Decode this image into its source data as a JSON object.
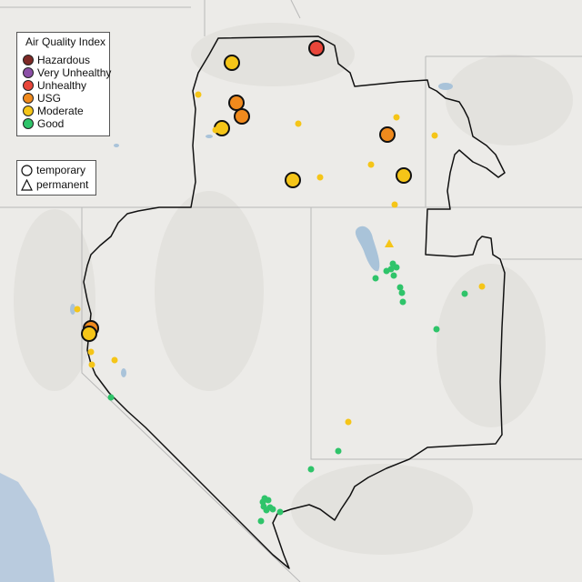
{
  "legend": {
    "title": "Air Quality Index",
    "categories": [
      {
        "label": "Hazardous",
        "color": "#7e2a26"
      },
      {
        "label": "Very Unhealthy",
        "color": "#8b4fa6"
      },
      {
        "label": "Unhealthy",
        "color": "#e8463a"
      },
      {
        "label": "USG",
        "color": "#f08a1d"
      },
      {
        "label": "Moderate",
        "color": "#f5c518"
      },
      {
        "label": "Good",
        "color": "#2fc46a"
      }
    ]
  },
  "monitor_types": [
    {
      "label": "temporary",
      "shape": "circle"
    },
    {
      "label": "permanent",
      "shape": "triangle"
    }
  ],
  "colors": {
    "land": "#ecebe8",
    "ocean": "#b9cbde",
    "lakes": "#a9c3d9",
    "state_lines": "#b8b8b8",
    "region_outline": "#111111"
  },
  "monitors": [
    {
      "category": "Unhealthy",
      "type": "temporary",
      "size": "large"
    },
    {
      "category": "USG",
      "type": "temporary",
      "size": "large"
    },
    {
      "category": "USG",
      "type": "temporary",
      "size": "large"
    },
    {
      "category": "USG",
      "type": "temporary",
      "size": "large"
    },
    {
      "category": "USG",
      "type": "temporary",
      "size": "large"
    },
    {
      "category": "Moderate",
      "type": "temporary",
      "size": "large"
    },
    {
      "category": "Moderate",
      "type": "temporary",
      "size": "large"
    },
    {
      "category": "Moderate",
      "type": "temporary",
      "size": "large"
    },
    {
      "category": "Moderate",
      "type": "temporary",
      "size": "large"
    },
    {
      "category": "Moderate",
      "type": "temporary",
      "size": "large"
    },
    {
      "category": "Moderate",
      "type": "temporary",
      "size": "small"
    },
    {
      "category": "Moderate",
      "type": "temporary",
      "size": "small"
    },
    {
      "category": "Moderate",
      "type": "temporary",
      "size": "small"
    },
    {
      "category": "Moderate",
      "type": "temporary",
      "size": "small"
    },
    {
      "category": "Moderate",
      "type": "temporary",
      "size": "small"
    },
    {
      "category": "Moderate",
      "type": "temporary",
      "size": "small"
    },
    {
      "category": "Moderate",
      "type": "temporary",
      "size": "small"
    },
    {
      "category": "Moderate",
      "type": "temporary",
      "size": "small"
    },
    {
      "category": "Moderate",
      "type": "temporary",
      "size": "small"
    },
    {
      "category": "Moderate",
      "type": "temporary",
      "size": "small"
    },
    {
      "category": "Moderate",
      "type": "temporary",
      "size": "small"
    },
    {
      "category": "Moderate",
      "type": "temporary",
      "size": "small"
    },
    {
      "category": "Moderate",
      "type": "temporary",
      "size": "small"
    },
    {
      "category": "Moderate",
      "type": "temporary",
      "size": "small"
    },
    {
      "category": "Moderate",
      "type": "permanent",
      "size": "small"
    },
    {
      "category": "Good",
      "type": "temporary",
      "size": "small"
    },
    {
      "category": "Good",
      "type": "temporary",
      "size": "small"
    },
    {
      "category": "Good",
      "type": "temporary",
      "size": "small"
    },
    {
      "category": "Good",
      "type": "temporary",
      "size": "small"
    },
    {
      "category": "Good",
      "type": "temporary",
      "size": "small"
    },
    {
      "category": "Good",
      "type": "temporary",
      "size": "small"
    },
    {
      "category": "Good",
      "type": "temporary",
      "size": "small"
    },
    {
      "category": "Good",
      "type": "temporary",
      "size": "small"
    },
    {
      "category": "Good",
      "type": "temporary",
      "size": "small"
    },
    {
      "category": "Good",
      "type": "temporary",
      "size": "small"
    },
    {
      "category": "Good",
      "type": "temporary",
      "size": "small"
    },
    {
      "category": "Good",
      "type": "temporary",
      "size": "small"
    },
    {
      "category": "Good",
      "type": "temporary",
      "size": "small"
    },
    {
      "category": "Good",
      "type": "temporary",
      "size": "small"
    },
    {
      "category": "Good",
      "type": "temporary",
      "size": "small"
    },
    {
      "category": "Good",
      "type": "temporary",
      "size": "small"
    },
    {
      "category": "Good",
      "type": "temporary",
      "size": "small"
    },
    {
      "category": "Good",
      "type": "temporary",
      "size": "small"
    },
    {
      "category": "Good",
      "type": "temporary",
      "size": "small"
    },
    {
      "category": "Good",
      "type": "temporary",
      "size": "small"
    },
    {
      "category": "Good",
      "type": "temporary",
      "size": "small"
    },
    {
      "category": "Good",
      "type": "temporary",
      "size": "small"
    },
    {
      "category": "Good",
      "type": "temporary",
      "size": "small"
    }
  ]
}
